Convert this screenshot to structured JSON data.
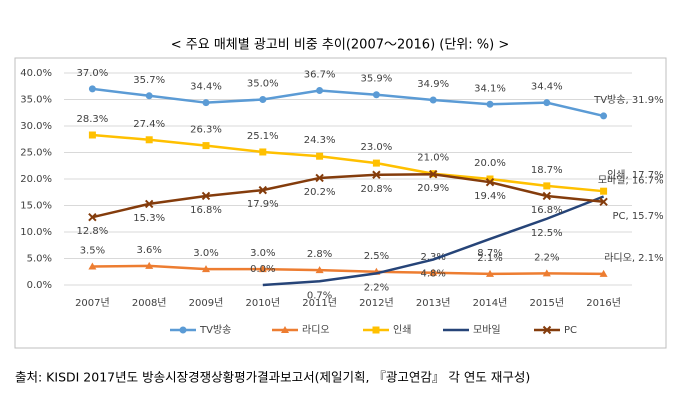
{
  "chart_data": {
    "type": "line",
    "title": "< 주요 매체별 광고비 비중 추이(2007～2016) (단위: %) >",
    "source": "출처: KISDI 2017년도 방송시장경쟁상황평가결과보고서(제일기획, 『광고연감』 각 연도 재구성)",
    "categories": [
      "2007년",
      "2008년",
      "2009년",
      "2010년",
      "2011년",
      "2012년",
      "2013년",
      "2014년",
      "2015년",
      "2016년"
    ],
    "ylim": [
      0,
      40
    ],
    "yticks": [
      {
        "value": 0,
        "label": "0.0%"
      },
      {
        "value": 5,
        "label": "5.0%"
      },
      {
        "value": 10,
        "label": "10.0%"
      },
      {
        "value": 15,
        "label": "15.0%"
      },
      {
        "value": 20,
        "label": "20.0%"
      },
      {
        "value": 25,
        "label": "25.0%"
      },
      {
        "value": 30,
        "label": "30.0%"
      },
      {
        "value": 35,
        "label": "35.0%"
      },
      {
        "value": 40,
        "label": "40.0%"
      }
    ],
    "grid": true,
    "legend": "bottom",
    "series": [
      {
        "name": "TV방송",
        "color": "#5b9bd5",
        "marker": "circle",
        "values": [
          37.0,
          35.7,
          34.4,
          35.0,
          36.7,
          35.9,
          34.9,
          34.1,
          34.4,
          31.9
        ],
        "value_labels": [
          "37.0%",
          "35.7%",
          "34.4%",
          "35.0%",
          "36.7%",
          "35.9%",
          "34.9%",
          "34.1%",
          "34.4%",
          "TV방송, 31.9%"
        ]
      },
      {
        "name": "라디오",
        "color": "#ed7d31",
        "marker": "triangle",
        "values": [
          3.5,
          3.6,
          3.0,
          3.0,
          2.8,
          2.5,
          2.3,
          2.1,
          2.2,
          2.1
        ],
        "value_labels": [
          "3.5%",
          "3.6%",
          "3.0%",
          "3.0%",
          "2.8%",
          "2.5%",
          "2.3%",
          "2.1%",
          "2.2%",
          "라디오, 2.1%"
        ]
      },
      {
        "name": "인쇄",
        "color": "#ffc000",
        "marker": "square",
        "values": [
          28.3,
          27.4,
          26.3,
          25.1,
          24.3,
          23.0,
          21.0,
          20.0,
          18.7,
          17.7
        ],
        "value_labels": [
          "28.3%",
          "27.4%",
          "26.3%",
          "25.1%",
          "24.3%",
          "23.0%",
          "21.0%",
          "20.0%",
          "18.7%",
          "인쇄, 17.7%"
        ]
      },
      {
        "name": "모바일",
        "color": "#264478",
        "marker": "none",
        "values": [
          null,
          null,
          null,
          0.0,
          0.7,
          2.2,
          4.8,
          8.7,
          12.5,
          16.7
        ],
        "value_labels": [
          null,
          null,
          null,
          "0.0%",
          "0.7%",
          "2.2%",
          "4.8%",
          "8.7%",
          "12.5%",
          "모바일, 16.7%"
        ]
      },
      {
        "name": "PC",
        "color": "#843c0c",
        "marker": "x",
        "values": [
          12.8,
          15.3,
          16.8,
          17.9,
          20.2,
          20.8,
          20.9,
          19.4,
          16.8,
          15.7
        ],
        "value_labels": [
          "12.8%",
          "15.3%",
          "16.8%",
          "17.9%",
          "20.2%",
          "20.8%",
          "20.9%",
          "19.4%",
          "16.8%",
          "PC, 15.7%"
        ]
      }
    ]
  }
}
